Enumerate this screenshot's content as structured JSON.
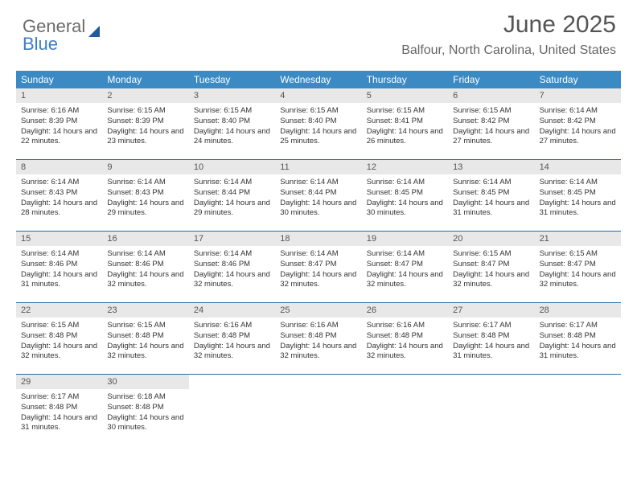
{
  "logo": {
    "word1": "General",
    "word2": "Blue"
  },
  "title": "June 2025",
  "location": "Balfour, North Carolina, United States",
  "colors": {
    "header_bg": "#3b8ac4",
    "header_text": "#ffffff",
    "daynum_bg": "#e8e8e8",
    "week_border": "#2a6aa8",
    "title_color": "#555555",
    "body_text": "#333333"
  },
  "day_names": [
    "Sunday",
    "Monday",
    "Tuesday",
    "Wednesday",
    "Thursday",
    "Friday",
    "Saturday"
  ],
  "weeks": [
    [
      {
        "n": "1",
        "sr": "Sunrise: 6:16 AM",
        "ss": "Sunset: 8:39 PM",
        "dl": "Daylight: 14 hours and 22 minutes."
      },
      {
        "n": "2",
        "sr": "Sunrise: 6:15 AM",
        "ss": "Sunset: 8:39 PM",
        "dl": "Daylight: 14 hours and 23 minutes."
      },
      {
        "n": "3",
        "sr": "Sunrise: 6:15 AM",
        "ss": "Sunset: 8:40 PM",
        "dl": "Daylight: 14 hours and 24 minutes."
      },
      {
        "n": "4",
        "sr": "Sunrise: 6:15 AM",
        "ss": "Sunset: 8:40 PM",
        "dl": "Daylight: 14 hours and 25 minutes."
      },
      {
        "n": "5",
        "sr": "Sunrise: 6:15 AM",
        "ss": "Sunset: 8:41 PM",
        "dl": "Daylight: 14 hours and 26 minutes."
      },
      {
        "n": "6",
        "sr": "Sunrise: 6:15 AM",
        "ss": "Sunset: 8:42 PM",
        "dl": "Daylight: 14 hours and 27 minutes."
      },
      {
        "n": "7",
        "sr": "Sunrise: 6:14 AM",
        "ss": "Sunset: 8:42 PM",
        "dl": "Daylight: 14 hours and 27 minutes."
      }
    ],
    [
      {
        "n": "8",
        "sr": "Sunrise: 6:14 AM",
        "ss": "Sunset: 8:43 PM",
        "dl": "Daylight: 14 hours and 28 minutes."
      },
      {
        "n": "9",
        "sr": "Sunrise: 6:14 AM",
        "ss": "Sunset: 8:43 PM",
        "dl": "Daylight: 14 hours and 29 minutes."
      },
      {
        "n": "10",
        "sr": "Sunrise: 6:14 AM",
        "ss": "Sunset: 8:44 PM",
        "dl": "Daylight: 14 hours and 29 minutes."
      },
      {
        "n": "11",
        "sr": "Sunrise: 6:14 AM",
        "ss": "Sunset: 8:44 PM",
        "dl": "Daylight: 14 hours and 30 minutes."
      },
      {
        "n": "12",
        "sr": "Sunrise: 6:14 AM",
        "ss": "Sunset: 8:45 PM",
        "dl": "Daylight: 14 hours and 30 minutes."
      },
      {
        "n": "13",
        "sr": "Sunrise: 6:14 AM",
        "ss": "Sunset: 8:45 PM",
        "dl": "Daylight: 14 hours and 31 minutes."
      },
      {
        "n": "14",
        "sr": "Sunrise: 6:14 AM",
        "ss": "Sunset: 8:45 PM",
        "dl": "Daylight: 14 hours and 31 minutes."
      }
    ],
    [
      {
        "n": "15",
        "sr": "Sunrise: 6:14 AM",
        "ss": "Sunset: 8:46 PM",
        "dl": "Daylight: 14 hours and 31 minutes."
      },
      {
        "n": "16",
        "sr": "Sunrise: 6:14 AM",
        "ss": "Sunset: 8:46 PM",
        "dl": "Daylight: 14 hours and 32 minutes."
      },
      {
        "n": "17",
        "sr": "Sunrise: 6:14 AM",
        "ss": "Sunset: 8:46 PM",
        "dl": "Daylight: 14 hours and 32 minutes."
      },
      {
        "n": "18",
        "sr": "Sunrise: 6:14 AM",
        "ss": "Sunset: 8:47 PM",
        "dl": "Daylight: 14 hours and 32 minutes."
      },
      {
        "n": "19",
        "sr": "Sunrise: 6:14 AM",
        "ss": "Sunset: 8:47 PM",
        "dl": "Daylight: 14 hours and 32 minutes."
      },
      {
        "n": "20",
        "sr": "Sunrise: 6:15 AM",
        "ss": "Sunset: 8:47 PM",
        "dl": "Daylight: 14 hours and 32 minutes."
      },
      {
        "n": "21",
        "sr": "Sunrise: 6:15 AM",
        "ss": "Sunset: 8:47 PM",
        "dl": "Daylight: 14 hours and 32 minutes."
      }
    ],
    [
      {
        "n": "22",
        "sr": "Sunrise: 6:15 AM",
        "ss": "Sunset: 8:48 PM",
        "dl": "Daylight: 14 hours and 32 minutes."
      },
      {
        "n": "23",
        "sr": "Sunrise: 6:15 AM",
        "ss": "Sunset: 8:48 PM",
        "dl": "Daylight: 14 hours and 32 minutes."
      },
      {
        "n": "24",
        "sr": "Sunrise: 6:16 AM",
        "ss": "Sunset: 8:48 PM",
        "dl": "Daylight: 14 hours and 32 minutes."
      },
      {
        "n": "25",
        "sr": "Sunrise: 6:16 AM",
        "ss": "Sunset: 8:48 PM",
        "dl": "Daylight: 14 hours and 32 minutes."
      },
      {
        "n": "26",
        "sr": "Sunrise: 6:16 AM",
        "ss": "Sunset: 8:48 PM",
        "dl": "Daylight: 14 hours and 32 minutes."
      },
      {
        "n": "27",
        "sr": "Sunrise: 6:17 AM",
        "ss": "Sunset: 8:48 PM",
        "dl": "Daylight: 14 hours and 31 minutes."
      },
      {
        "n": "28",
        "sr": "Sunrise: 6:17 AM",
        "ss": "Sunset: 8:48 PM",
        "dl": "Daylight: 14 hours and 31 minutes."
      }
    ],
    [
      {
        "n": "29",
        "sr": "Sunrise: 6:17 AM",
        "ss": "Sunset: 8:48 PM",
        "dl": "Daylight: 14 hours and 31 minutes."
      },
      {
        "n": "30",
        "sr": "Sunrise: 6:18 AM",
        "ss": "Sunset: 8:48 PM",
        "dl": "Daylight: 14 hours and 30 minutes."
      },
      null,
      null,
      null,
      null,
      null
    ]
  ]
}
